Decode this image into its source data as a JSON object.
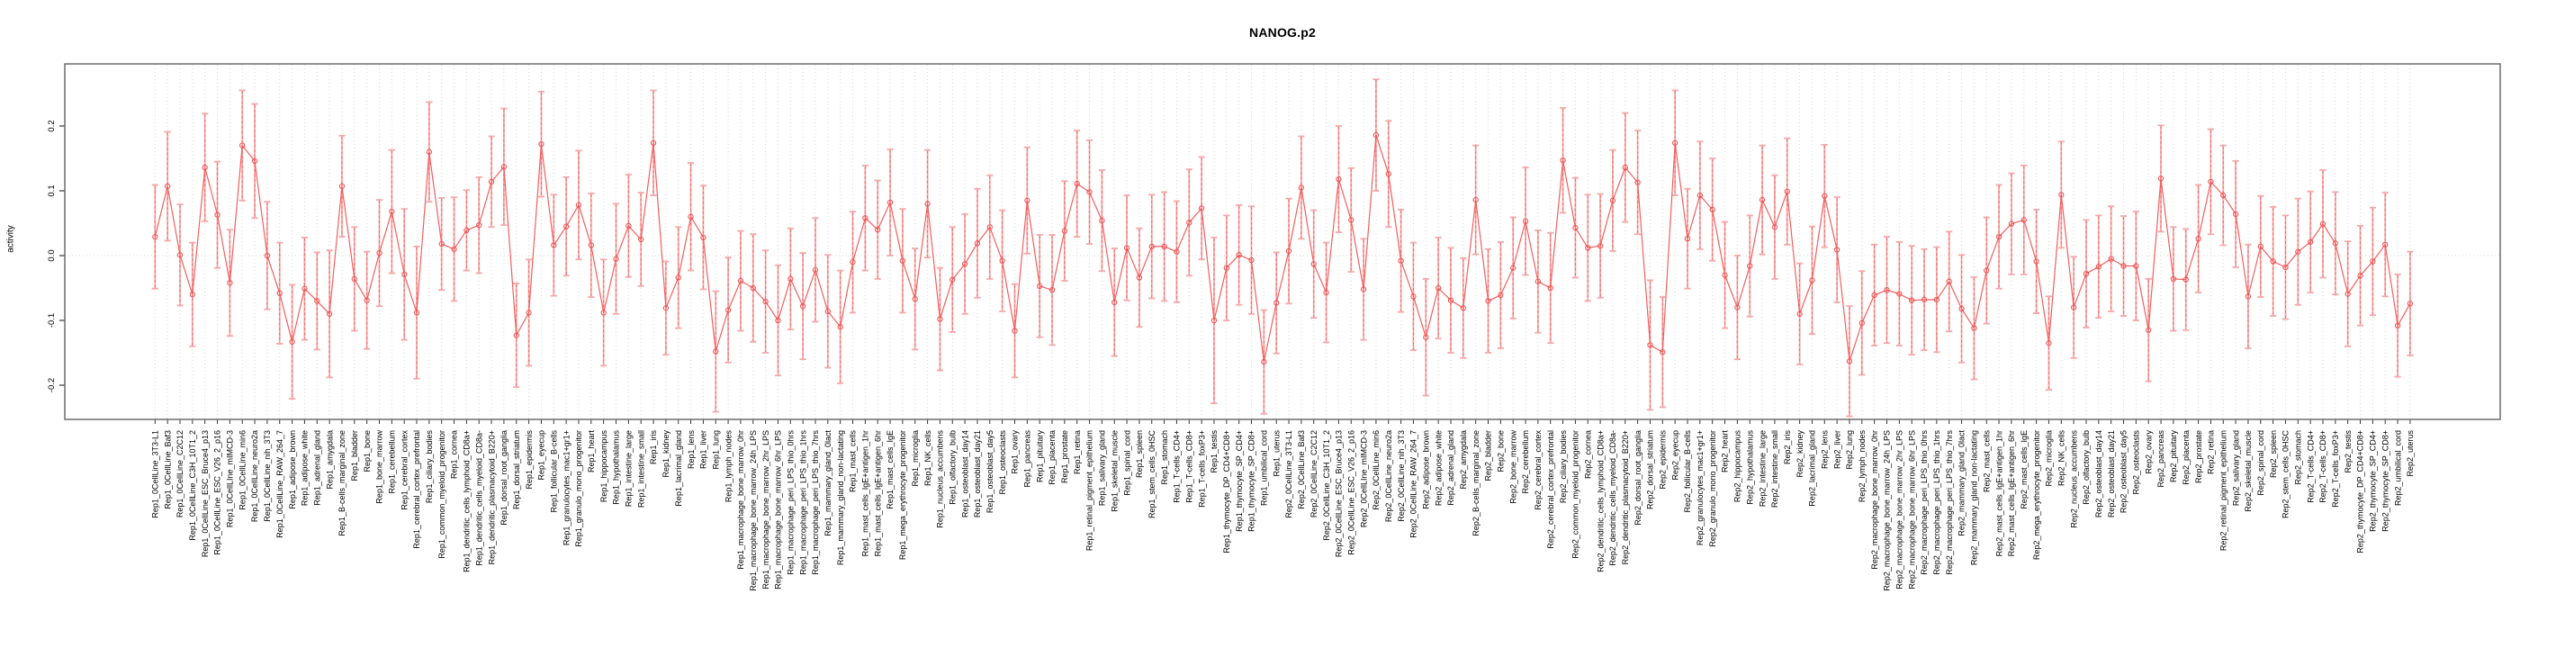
{
  "title": "NANOG.p2",
  "y_axis": {
    "label": "activity",
    "tick_labels": [
      "0.2",
      "0.1",
      "0.0",
      "-0.1",
      "-0.2"
    ],
    "tick_values": [
      0.2,
      0.1,
      0.0,
      -0.1,
      -0.2
    ]
  },
  "colors": {
    "series_line": "#f25f5f",
    "marker": "#ee5252",
    "error_bar": "#f7a6a6",
    "error_dash": "#f06a6a",
    "grid": "#d9d9d9",
    "zero_line": "#d9d9d9",
    "box": "#6b6b6b",
    "tick": "#333333",
    "text": "#000000"
  },
  "chart_data": {
    "type": "line",
    "marker": "open-circle",
    "error_bars": true,
    "title": "NANOG.p2",
    "xlabel": "",
    "ylabel": "activity",
    "ylim": [
      -0.27,
      0.28
    ],
    "grid": "vertical dotted gridline at every sample; dotted horizontal line at y=0",
    "legend_position": "none",
    "categories": [
      "Rep1_0CellLine_3T3-L1",
      "Rep1_0CellLine_Baf3",
      "Rep1_0CellLine_C2C12",
      "Rep1_0CellLine_C3H_10T1_2",
      "Rep1_0CellLine_ESC_Bruce4_p13",
      "Rep1_0CellLine_ESC_V26_2_p16",
      "Rep1_0CellLIne_mIMCD-3",
      "Rep1_0CellLine_min6",
      "Rep1_0CellLine_neuro2a",
      "Rep1_0CellLine_nih_3T3",
      "Rep1_0CellLine_RAW_264_7",
      "Rep1_adipose_brown",
      "Rep1_adipose_white",
      "Rep1_adrenal_gland",
      "Rep1_amygdala",
      "Rep1_B-cells_marginal_zone",
      "Rep1_bladder",
      "Rep1_bone",
      "Rep1_bone_marrow",
      "Rep1_cerebellum",
      "Rep1_cerebral_cortex",
      "Rep1_cerebral_cortex_prefrontal",
      "Rep1_ciliary_bodies",
      "Rep1_common_myeloid_progenitor",
      "Rep1_cornea",
      "Rep1_dendritic_cells_lymphoid_CD8a+",
      "Rep1_dendritic_cells_myeloid_CD8a-",
      "Rep1_dendritic_plasmacytoid_B220+",
      "Rep1_dorsal_root_ganglia",
      "Rep1_dorsal_striatum",
      "Rep1_epidermis",
      "Rep1_eyecup",
      "Rep1_follicular_B-cells",
      "Rep1_granulocytes_mac1+gr1+",
      "Rep1_granulo_mono_progenitor",
      "Rep1_heart",
      "Rep1_hippocampus",
      "Rep1_hypothalamus",
      "Rep1_intestine_large",
      "Rep1_intestine_small",
      "Rep1_iris",
      "Rep1_kidney",
      "Rep1_lacrimal_gland",
      "Rep1_lens",
      "Rep1_liver",
      "Rep1_lung",
      "Rep1_lymph_nodes",
      "Rep1_macrophage_bone_marrow_0hr",
      "Rep1_macrophage_bone_marrow_24h_LPS",
      "Rep1_macrophage_bone_marrow_2hr_LPS",
      "Rep1_macrophage_bone_marrow_6hr_LPS",
      "Rep1_macrophage_peri_LPS_thio_0hrs",
      "Rep1_macrophage_peri_LPS_thio_1hrs",
      "Rep1_macrophage_peri_LPS_thio_7hrs",
      "Rep1_mammary_gland_0lact",
      "Rep1_mammary_gland_non-lactating",
      "Rep1_mast_cells",
      "Rep1_mast_cells_IgE+antigen_1hr",
      "Rep1_mast_cells_IgE+antigen_6hr",
      "Rep1_mast_cells_IgE",
      "Rep1_mega_erythrocyte_progenitor",
      "Rep1_microglia",
      "Rep1_NK_cells",
      "Rep1_nucleus_accumbens",
      "Rep1_olfactory_bulb",
      "Rep1_osteoblast_day14",
      "Rep1_osteoblast_day21",
      "Rep1_osteoblast_day5",
      "Rep1_osteoclasts",
      "Rep1_ovary",
      "Rep1_pancreas",
      "Rep1_pituitary",
      "Rep1_placenta",
      "Rep1_prostate",
      "Rep1_retina",
      "Rep1_retinal_pigment_epithelium",
      "Rep1_salivary_gland",
      "Rep1_skeletal_muscle",
      "Rep1_spinal_cord",
      "Rep1_spleen",
      "Rep1_stem_cells_0HSC",
      "Rep1_stomach",
      "Rep1_T-cells_CD4+",
      "Rep1_T-cells_CD8+",
      "Rep1_T-cells_foxP3+",
      "Rep1_testis",
      "Rep1_thymocyte_DP_CD4+CD8+",
      "Rep1_thymocyte_SP_CD4+",
      "Rep1_thymocyte_SP_CD8+",
      "Rep1_umbilical_cord",
      "Rep1_uterus",
      "Rep2_0CellLine_3T3-L1",
      "Rep2_0CellLine_Baf3",
      "Rep2_0CellLine_C2C12",
      "Rep2_0CellLine_C3H_10T1_2",
      "Rep2_0CellLine_ESC_Bruce4_p13",
      "Rep2_0CellLine_ESC_V26_2_p16",
      "Rep2_0CellLIne_mIMCD-3",
      "Rep2_0CellLine_min6",
      "Rep2_0CellLine_neuro2a",
      "Rep2_0CellLine_nih_3T3",
      "Rep2_0CellLine_RAW_264_7",
      "Rep2_adipose_brown",
      "Rep2_adipose_white",
      "Rep2_adrenal_gland",
      "Rep2_amygdala",
      "Rep2_B-cells_marginal_zone",
      "Rep2_bladder",
      "Rep2_bone",
      "Rep2_bone_marrow",
      "Rep2_cerebellum",
      "Rep2_cerebral_cortex",
      "Rep2_cerebral_cortex_prefrontal",
      "Rep2_ciliary_bodies",
      "Rep2_common_myeloid_progenitor",
      "Rep2_cornea",
      "Rep2_dendritic_cells_lymphoid_CD8a+",
      "Rep2_dendritic_cells_myeloid_CD8a-",
      "Rep2_dendritic_plasmacytoid_B220+",
      "Rep2_dorsal_root_ganglia",
      "Rep2_dorsal_striatum",
      "Rep2_epidermis",
      "Rep2_eyecup",
      "Rep2_follicular_B-cells",
      "Rep2_granulocytes_mac1+gr1+",
      "Rep2_granulo_mono_progenitor",
      "Rep2_heart",
      "Rep2_hippocampus",
      "Rep2_hypothalamus",
      "Rep2_intestine_large",
      "Rep2_intestine_small",
      "Rep2_iris",
      "Rep2_kidney",
      "Rep2_lacrimal_gland",
      "Rep2_lens",
      "Rep2_liver",
      "Rep2_lung",
      "Rep2_lymph_nodes",
      "Rep2_macrophage_bone_marrow_0hr",
      "Rep2_macrophage_bone_marrow_24h_LPS",
      "Rep2_macrophage_bone_marrow_2hr_LPS",
      "Rep2_macrophage_bone_marrow_6hr_LPS",
      "Rep2_macrophage_peri_LPS_thio_0hrs",
      "Rep2_macrophage_peri_LPS_thio_1hrs",
      "Rep2_macrophage_peri_LPS_thio_7hrs",
      "Rep2_mammary_gland_0lact",
      "Rep2_mammary_gland_non-lactating",
      "Rep2_mast_cells",
      "Rep2_mast_cells_IgE+antigen_1hr",
      "Rep2_mast_cells_IgE+antigen_6hr",
      "Rep2_mast_cells_IgE",
      "Rep2_mega_erythrocyte_progenitor",
      "Rep2_microglia",
      "Rep2_NK_cells",
      "Rep2_nucleus_accumbens",
      "Rep2_olfactory_bulb",
      "Rep2_osteoblast_day14",
      "Rep2_osteoblast_day21",
      "Rep2_osteoblast_day5",
      "Rep2_osteoclasts",
      "Rep2_ovary",
      "Rep2_pancreas",
      "Rep2_pituitary",
      "Rep2_placenta",
      "Rep2_prostate",
      "Rep2_retina",
      "Rep2_retinal_pigment_epithelium",
      "Rep2_salivary_gland",
      "Rep2_skeletal_muscle",
      "Rep2_spinal_cord",
      "Rep2_spleen",
      "Rep2_stem_cells_0HSC",
      "Rep2_stomach",
      "Rep2_T-cells_CD4+",
      "Rep2_T-cells_CD8+",
      "Rep2_T-cells_foxP3+",
      "Rep2_testis",
      "Rep2_thymocyte_DP_CD4+CD8+",
      "Rep2_thymocyte_SP_CD4+",
      "Rep2_thymocyte_SP_CD8+",
      "Rep2_umbilical_cord",
      "Rep2_uterus"
    ],
    "values": [
      0.029,
      0.107,
      0.001,
      -0.06,
      0.136,
      0.063,
      -0.042,
      0.17,
      0.146,
      0.0,
      -0.058,
      -0.133,
      -0.051,
      -0.07,
      -0.09,
      0.107,
      -0.036,
      -0.069,
      0.004,
      0.068,
      -0.029,
      -0.088,
      0.16,
      0.018,
      0.01,
      0.039,
      0.047,
      0.114,
      0.137,
      -0.123,
      -0.088,
      0.172,
      0.016,
      0.045,
      0.078,
      0.016,
      -0.088,
      -0.005,
      0.046,
      0.025,
      0.174,
      -0.081,
      -0.034,
      0.06,
      0.028,
      -0.148,
      -0.084,
      -0.039,
      -0.05,
      -0.071,
      -0.1,
      -0.036,
      -0.078,
      -0.022,
      -0.086,
      -0.11,
      -0.01,
      0.058,
      0.04,
      0.082,
      -0.008,
      -0.067,
      0.08,
      -0.098,
      -0.037,
      -0.013,
      0.019,
      0.044,
      -0.008,
      -0.116,
      0.085,
      -0.047,
      -0.053,
      0.038,
      0.111,
      0.098,
      0.054,
      -0.072,
      0.012,
      -0.034,
      0.014,
      0.014,
      0.006,
      0.051,
      0.073,
      -0.1,
      -0.019,
      0.001,
      -0.007,
      -0.164,
      -0.073,
      0.007,
      0.105,
      -0.013,
      -0.057,
      0.118,
      0.055,
      -0.052,
      0.186,
      0.126,
      -0.008,
      -0.063,
      -0.126,
      -0.05,
      -0.069,
      -0.081,
      0.086,
      -0.07,
      -0.061,
      -0.019,
      0.053,
      -0.04,
      -0.05,
      0.147,
      0.043,
      0.012,
      0.015,
      0.085,
      0.136,
      0.113,
      -0.138,
      -0.149,
      0.174,
      0.026,
      0.093,
      0.071,
      -0.03,
      -0.08,
      -0.016,
      0.086,
      0.044,
      0.099,
      -0.09,
      -0.038,
      0.092,
      0.009,
      -0.163,
      -0.104,
      -0.061,
      -0.053,
      -0.059,
      -0.069,
      -0.068,
      -0.068,
      -0.04,
      -0.082,
      -0.112,
      -0.023,
      0.029,
      0.049,
      0.055,
      -0.009,
      -0.135,
      0.094,
      -0.08,
      -0.028,
      -0.017,
      -0.005,
      -0.016,
      -0.016,
      -0.115,
      0.119,
      -0.036,
      -0.037,
      0.026,
      0.114,
      0.093,
      0.064,
      -0.063,
      0.014,
      -0.009,
      -0.018,
      0.006,
      0.021,
      0.049,
      0.019,
      -0.059,
      -0.031,
      -0.009,
      0.017,
      -0.108,
      -0.074
    ],
    "errors": [
      0.08,
      0.084,
      0.078,
      0.08,
      0.083,
      0.082,
      0.082,
      0.085,
      0.088,
      0.083,
      0.078,
      0.088,
      0.079,
      0.075,
      0.098,
      0.078,
      0.08,
      0.075,
      0.082,
      0.095,
      0.101,
      0.102,
      0.077,
      0.071,
      0.08,
      0.062,
      0.074,
      0.07,
      0.09,
      0.08,
      0.082,
      0.081,
      0.078,
      0.076,
      0.084,
      0.08,
      0.082,
      0.085,
      0.079,
      0.072,
      0.081,
      0.072,
      0.078,
      0.083,
      0.08,
      0.093,
      0.081,
      0.077,
      0.083,
      0.079,
      0.085,
      0.078,
      0.082,
      0.08,
      0.087,
      0.087,
      0.078,
      0.081,
      0.076,
      0.082,
      0.08,
      0.078,
      0.083,
      0.079,
      0.081,
      0.077,
      0.084,
      0.08,
      0.078,
      0.072,
      0.082,
      0.079,
      0.085,
      0.077,
      0.082,
      0.08,
      0.078,
      0.083,
      0.081,
      0.076,
      0.08,
      0.084,
      0.078,
      0.082,
      0.079,
      0.128,
      0.081,
      0.077,
      0.083,
      0.08,
      0.078,
      0.081,
      0.079,
      0.083,
      0.077,
      0.082,
      0.08,
      0.078,
      0.086,
      0.082,
      0.079,
      0.083,
      0.09,
      0.078,
      0.081,
      0.077,
      0.084,
      0.08,
      0.082,
      0.078,
      0.083,
      0.079,
      0.085,
      0.081,
      0.077,
      0.082,
      0.08,
      0.078,
      0.084,
      0.08,
      0.1,
      0.085,
      0.081,
      0.077,
      0.083,
      0.079,
      0.082,
      0.08,
      0.078,
      0.084,
      0.08,
      0.082,
      0.078,
      0.083,
      0.079,
      0.081,
      0.085,
      0.08,
      0.078,
      0.082,
      0.08,
      0.084,
      0.078,
      0.081,
      0.077,
      0.083,
      0.079,
      0.082,
      0.08,
      0.078,
      0.084,
      0.08,
      0.072,
      0.082,
      0.078,
      0.083,
      0.079,
      0.081,
      0.077,
      0.084,
      0.079,
      0.082,
      0.08,
      0.078,
      0.083,
      0.081,
      0.077,
      0.082,
      0.08,
      0.078,
      0.084,
      0.08,
      0.082,
      0.078,
      0.083,
      0.079,
      0.081,
      0.077,
      0.083,
      0.08,
      0.079,
      0.08
    ]
  }
}
